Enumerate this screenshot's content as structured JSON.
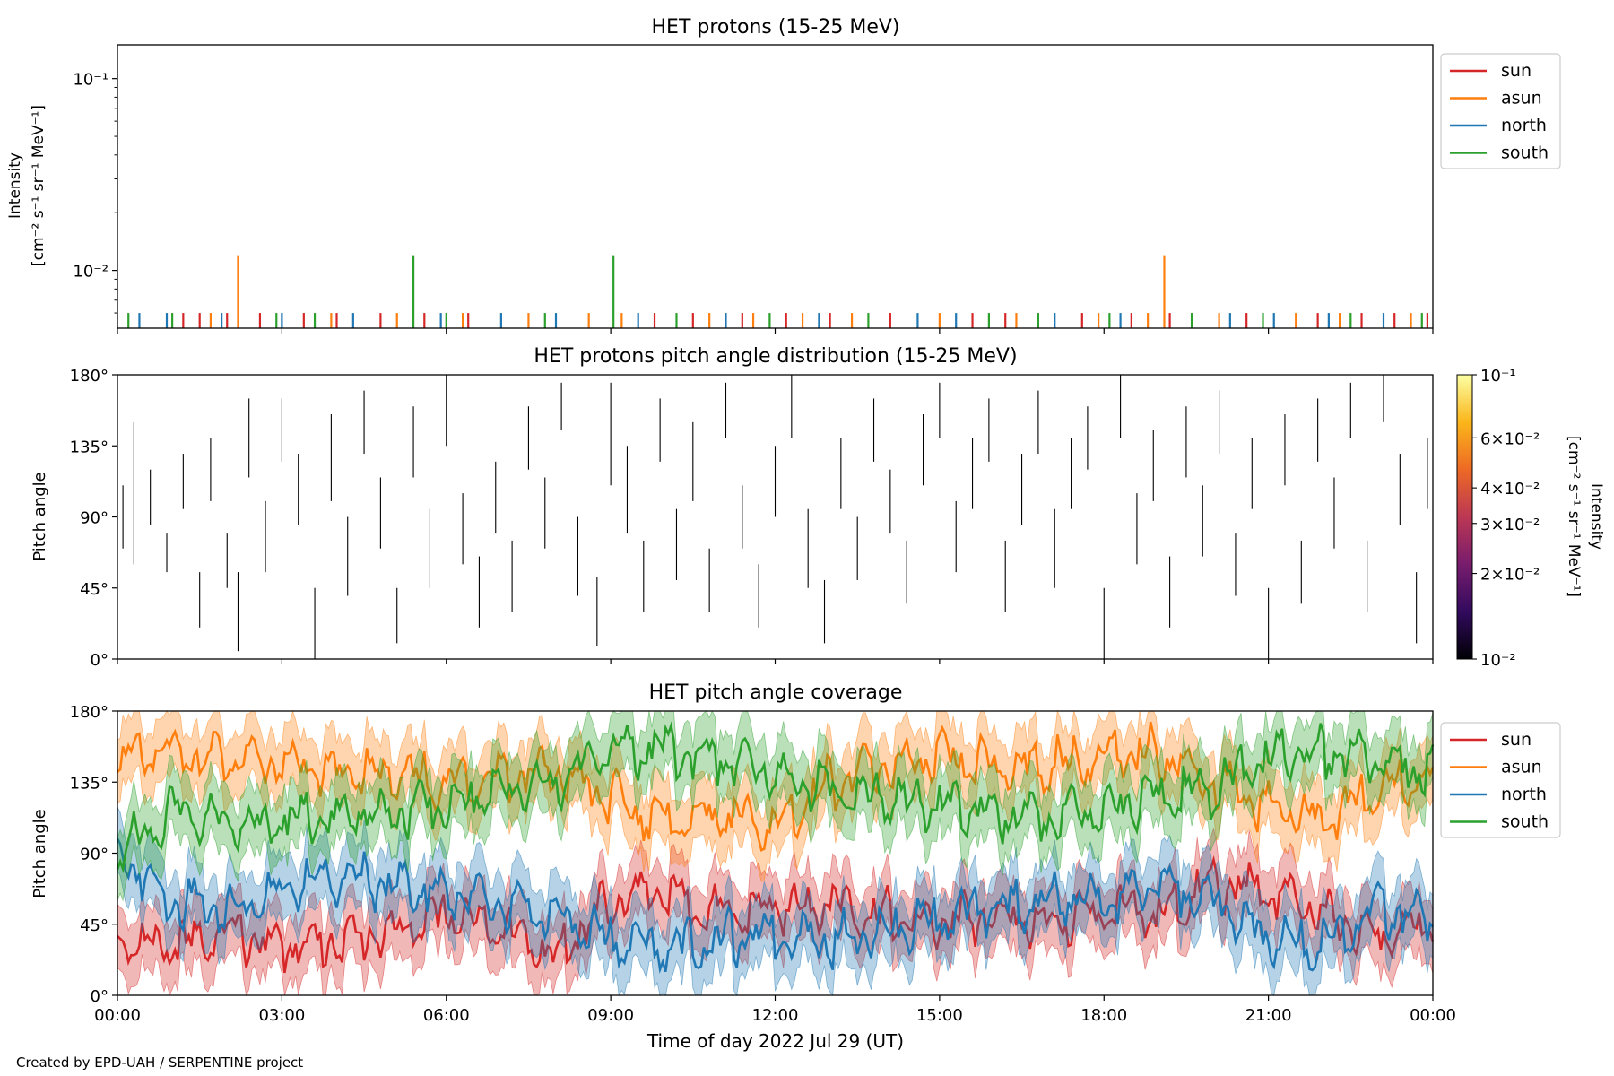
{
  "figure": {
    "credit": "Created by EPD-UAH / SERPENTINE project",
    "xlabel": "Time of day 2022 Jul 29 (UT)",
    "x_ticks": [
      "00:00",
      "03:00",
      "06:00",
      "09:00",
      "12:00",
      "15:00",
      "18:00",
      "21:00",
      "00:00"
    ]
  },
  "chart_data": [
    {
      "type": "line",
      "title": "HET protons (15-25 MeV)",
      "ylabel_line1": "Intensity",
      "ylabel_line2": "[cm⁻² s⁻¹ sr⁻¹ MeV⁻¹]",
      "yscale": "log",
      "ylim": [
        0.005,
        0.15
      ],
      "y_ticks": [
        {
          "value": 0.1,
          "label": "10⁻¹"
        },
        {
          "value": 0.01,
          "label": "10⁻²"
        }
      ],
      "xlim_hours": [
        0,
        24
      ],
      "legend_position": "outside-right",
      "series": [
        {
          "name": "sun",
          "color": "#d62728",
          "values": [
            [
              1.2,
              0.006
            ],
            [
              1.5,
              0.006
            ],
            [
              2.0,
              0.006
            ],
            [
              2.6,
              0.006
            ],
            [
              3.4,
              0.006
            ],
            [
              4.0,
              0.006
            ],
            [
              4.8,
              0.006
            ],
            [
              5.6,
              0.006
            ],
            [
              6.4,
              0.006
            ],
            [
              9.8,
              0.006
            ],
            [
              10.5,
              0.006
            ],
            [
              11.4,
              0.006
            ],
            [
              12.2,
              0.006
            ],
            [
              13.0,
              0.006
            ],
            [
              14.1,
              0.006
            ],
            [
              15.6,
              0.006
            ],
            [
              16.2,
              0.006
            ],
            [
              17.6,
              0.006
            ],
            [
              18.5,
              0.006
            ],
            [
              19.2,
              0.006
            ],
            [
              20.6,
              0.006
            ],
            [
              21.9,
              0.006
            ],
            [
              22.7,
              0.006
            ],
            [
              23.3,
              0.006
            ],
            [
              23.9,
              0.006
            ]
          ]
        },
        {
          "name": "asun",
          "color": "#ff7f0e",
          "values": [
            [
              1.7,
              0.006
            ],
            [
              2.2,
              0.012
            ],
            [
              3.9,
              0.006
            ],
            [
              5.1,
              0.006
            ],
            [
              6.3,
              0.006
            ],
            [
              7.5,
              0.006
            ],
            [
              8.6,
              0.006
            ],
            [
              9.2,
              0.006
            ],
            [
              10.8,
              0.006
            ],
            [
              11.6,
              0.006
            ],
            [
              12.5,
              0.006
            ],
            [
              13.4,
              0.006
            ],
            [
              15.0,
              0.006
            ],
            [
              16.4,
              0.006
            ],
            [
              17.9,
              0.006
            ],
            [
              18.8,
              0.006
            ],
            [
              19.1,
              0.012
            ],
            [
              20.1,
              0.006
            ],
            [
              21.5,
              0.006
            ],
            [
              22.3,
              0.006
            ],
            [
              23.6,
              0.006
            ]
          ]
        },
        {
          "name": "north",
          "color": "#1f77b4",
          "values": [
            [
              0.4,
              0.006
            ],
            [
              0.9,
              0.006
            ],
            [
              1.9,
              0.006
            ],
            [
              3.0,
              0.006
            ],
            [
              4.3,
              0.006
            ],
            [
              5.9,
              0.006
            ],
            [
              7.0,
              0.006
            ],
            [
              8.0,
              0.006
            ],
            [
              9.5,
              0.006
            ],
            [
              11.1,
              0.006
            ],
            [
              12.8,
              0.006
            ],
            [
              14.6,
              0.006
            ],
            [
              15.3,
              0.006
            ],
            [
              17.1,
              0.006
            ],
            [
              18.3,
              0.006
            ],
            [
              20.3,
              0.006
            ],
            [
              21.1,
              0.006
            ],
            [
              22.1,
              0.006
            ],
            [
              23.1,
              0.006
            ]
          ]
        },
        {
          "name": "south",
          "color": "#2ca02c",
          "values": [
            [
              0.2,
              0.006
            ],
            [
              1.0,
              0.006
            ],
            [
              2.9,
              0.006
            ],
            [
              3.6,
              0.006
            ],
            [
              5.4,
              0.012
            ],
            [
              6.0,
              0.006
            ],
            [
              7.8,
              0.006
            ],
            [
              9.05,
              0.012
            ],
            [
              10.2,
              0.006
            ],
            [
              11.9,
              0.006
            ],
            [
              13.7,
              0.006
            ],
            [
              15.9,
              0.006
            ],
            [
              16.8,
              0.006
            ],
            [
              18.1,
              0.006
            ],
            [
              19.6,
              0.006
            ],
            [
              20.9,
              0.006
            ],
            [
              22.5,
              0.006
            ],
            [
              23.8,
              0.006
            ]
          ]
        }
      ]
    },
    {
      "type": "heatmap",
      "title": "HET protons pitch angle distribution (15-25 MeV)",
      "ylabel": "Pitch angle",
      "ylim": [
        0,
        180
      ],
      "y_ticks": [
        "0°",
        "45°",
        "90°",
        "135°",
        "180°"
      ],
      "xlim_hours": [
        0,
        24
      ],
      "colorbar": {
        "label_line1": "Intensity",
        "label_line2": "[cm⁻² s⁻¹ sr⁻¹ MeV⁻¹]",
        "scale": "log",
        "range": [
          0.01,
          0.1
        ],
        "ticks": [
          {
            "value": 0.1,
            "label": "10⁻¹"
          },
          {
            "value": 0.06,
            "label": "6×10⁻²"
          },
          {
            "value": 0.04,
            "label": "4×10⁻²"
          },
          {
            "value": 0.03,
            "label": "3×10⁻²"
          },
          {
            "value": 0.02,
            "label": "2×10⁻²"
          },
          {
            "value": 0.01,
            "label": "10⁻²"
          }
        ],
        "colors": [
          "#000004",
          "#320a5e",
          "#781c6d",
          "#bc3754",
          "#ed6925",
          "#fbb61a",
          "#fcffa4"
        ]
      },
      "segments": [
        [
          0.1,
          70,
          110
        ],
        [
          0.3,
          60,
          150
        ],
        [
          0.6,
          85,
          120
        ],
        [
          0.9,
          55,
          80
        ],
        [
          1.2,
          95,
          130
        ],
        [
          1.5,
          20,
          55
        ],
        [
          1.7,
          100,
          140
        ],
        [
          2.0,
          45,
          80
        ],
        [
          2.2,
          5,
          55
        ],
        [
          2.4,
          115,
          165
        ],
        [
          2.7,
          55,
          100
        ],
        [
          3.0,
          125,
          165
        ],
        [
          3.3,
          85,
          130
        ],
        [
          3.6,
          0,
          45
        ],
        [
          3.9,
          100,
          155
        ],
        [
          4.2,
          40,
          90
        ],
        [
          4.5,
          130,
          170
        ],
        [
          4.8,
          70,
          115
        ],
        [
          5.1,
          10,
          45
        ],
        [
          5.4,
          115,
          160
        ],
        [
          5.7,
          45,
          95
        ],
        [
          6.0,
          135,
          180
        ],
        [
          6.3,
          60,
          105
        ],
        [
          6.6,
          20,
          65
        ],
        [
          6.9,
          80,
          125
        ],
        [
          7.2,
          30,
          75
        ],
        [
          7.5,
          120,
          160
        ],
        [
          7.8,
          70,
          115
        ],
        [
          8.1,
          145,
          175
        ],
        [
          8.4,
          40,
          90
        ],
        [
          8.75,
          8,
          52
        ],
        [
          9.0,
          110,
          175
        ],
        [
          9.3,
          80,
          135
        ],
        [
          9.6,
          30,
          75
        ],
        [
          9.9,
          125,
          165
        ],
        [
          10.2,
          50,
          95
        ],
        [
          10.5,
          100,
          150
        ],
        [
          10.8,
          30,
          70
        ],
        [
          11.1,
          140,
          175
        ],
        [
          11.4,
          70,
          110
        ],
        [
          11.7,
          20,
          60
        ],
        [
          12.0,
          90,
          135
        ],
        [
          12.3,
          140,
          180
        ],
        [
          12.6,
          45,
          95
        ],
        [
          12.9,
          10,
          50
        ],
        [
          13.2,
          95,
          140
        ],
        [
          13.5,
          50,
          90
        ],
        [
          13.8,
          125,
          165
        ],
        [
          14.1,
          80,
          120
        ],
        [
          14.4,
          35,
          75
        ],
        [
          14.7,
          110,
          155
        ],
        [
          15.0,
          140,
          175
        ],
        [
          15.3,
          55,
          100
        ],
        [
          15.6,
          95,
          140
        ],
        [
          15.9,
          125,
          165
        ],
        [
          16.2,
          30,
          75
        ],
        [
          16.5,
          85,
          130
        ],
        [
          16.8,
          130,
          170
        ],
        [
          17.1,
          45,
          95
        ],
        [
          17.4,
          95,
          140
        ],
        [
          17.7,
          120,
          160
        ],
        [
          18.0,
          0,
          45
        ],
        [
          18.3,
          140,
          180
        ],
        [
          18.6,
          60,
          105
        ],
        [
          18.9,
          100,
          145
        ],
        [
          19.2,
          20,
          65
        ],
        [
          19.5,
          115,
          160
        ],
        [
          19.8,
          65,
          110
        ],
        [
          20.1,
          130,
          170
        ],
        [
          20.4,
          40,
          80
        ],
        [
          20.7,
          95,
          140
        ],
        [
          21.0,
          0,
          45
        ],
        [
          21.3,
          110,
          155
        ],
        [
          21.6,
          35,
          75
        ],
        [
          21.9,
          125,
          165
        ],
        [
          22.2,
          70,
          115
        ],
        [
          22.5,
          140,
          175
        ],
        [
          22.8,
          30,
          75
        ],
        [
          23.1,
          150,
          180
        ],
        [
          23.4,
          85,
          130
        ],
        [
          23.7,
          10,
          55
        ],
        [
          23.9,
          95,
          140
        ]
      ]
    },
    {
      "type": "line",
      "title": "HET pitch angle coverage",
      "ylabel": "Pitch angle",
      "ylim": [
        0,
        180
      ],
      "y_ticks": [
        "0°",
        "45°",
        "90°",
        "135°",
        "180°"
      ],
      "xlim_hours": [
        0,
        24
      ],
      "legend_position": "outside-right",
      "band_half_width_deg": 20,
      "series": [
        {
          "name": "sun",
          "color": "#d62728",
          "x": [
            0,
            1,
            2,
            3,
            4,
            5,
            6,
            7,
            8,
            9,
            10,
            11,
            12,
            13,
            14,
            15,
            16,
            17,
            18,
            19,
            20,
            21,
            22,
            23,
            24
          ],
          "values": [
            35,
            30,
            40,
            30,
            35,
            40,
            50,
            45,
            25,
            60,
            65,
            50,
            55,
            60,
            50,
            45,
            50,
            45,
            55,
            50,
            70,
            65,
            50,
            40,
            45
          ]
        },
        {
          "name": "asun",
          "color": "#ff7f0e",
          "x": [
            0,
            1,
            2,
            3,
            4,
            5,
            6,
            7,
            8,
            9,
            10,
            11,
            12,
            13,
            14,
            15,
            16,
            17,
            18,
            19,
            20,
            21,
            22,
            23,
            24
          ],
          "values": [
            150,
            155,
            150,
            145,
            140,
            140,
            135,
            140,
            140,
            125,
            110,
            115,
            105,
            135,
            145,
            150,
            145,
            145,
            150,
            155,
            135,
            120,
            110,
            130,
            140
          ]
        },
        {
          "name": "north",
          "color": "#1f77b4",
          "x": [
            0,
            1,
            2,
            3,
            4,
            5,
            6,
            7,
            8,
            9,
            10,
            11,
            12,
            13,
            14,
            15,
            16,
            17,
            18,
            19,
            20,
            21,
            22,
            23,
            24
          ],
          "values": [
            90,
            60,
            55,
            65,
            75,
            70,
            65,
            55,
            50,
            35,
            30,
            35,
            40,
            35,
            40,
            50,
            55,
            60,
            60,
            70,
            60,
            35,
            30,
            55,
            50
          ]
        },
        {
          "name": "south",
          "color": "#2ca02c",
          "x": [
            0,
            1,
            2,
            3,
            4,
            5,
            6,
            7,
            8,
            9,
            10,
            11,
            12,
            13,
            14,
            15,
            16,
            17,
            18,
            19,
            20,
            21,
            22,
            23,
            24
          ],
          "values": [
            90,
            115,
            110,
            110,
            115,
            115,
            120,
            130,
            135,
            155,
            155,
            150,
            140,
            130,
            125,
            120,
            115,
            115,
            120,
            125,
            130,
            150,
            155,
            150,
            140
          ]
        }
      ]
    }
  ]
}
